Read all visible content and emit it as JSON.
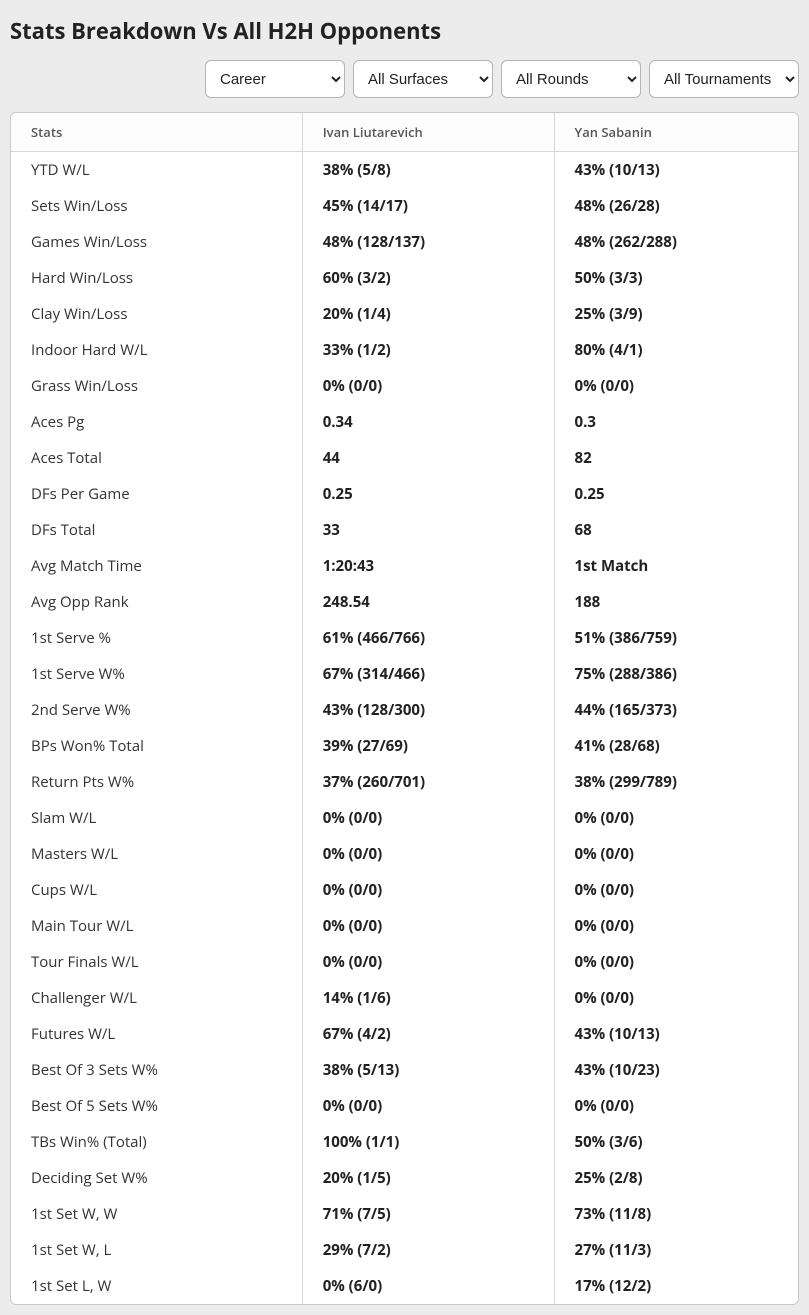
{
  "title": "Stats Breakdown Vs All H2H Opponents",
  "filters": {
    "period": {
      "selected": "Career",
      "options": [
        "Career"
      ]
    },
    "surface": {
      "selected": "All Surfaces",
      "options": [
        "All Surfaces"
      ]
    },
    "round": {
      "selected": "All Rounds",
      "options": [
        "All Rounds"
      ]
    },
    "tournament": {
      "selected": "All Tournaments",
      "options": [
        "All Tournaments"
      ]
    }
  },
  "table": {
    "columns": {
      "stats": "Stats",
      "player1": "Ivan Liutarevich",
      "player2": "Yan Sabanin"
    },
    "rows": [
      {
        "label": "YTD W/L",
        "p1": "38% (5/8)",
        "p2": "43% (10/13)"
      },
      {
        "label": "Sets Win/Loss",
        "p1": "45% (14/17)",
        "p2": "48% (26/28)"
      },
      {
        "label": "Games Win/Loss",
        "p1": "48% (128/137)",
        "p2": "48% (262/288)"
      },
      {
        "label": "Hard Win/Loss",
        "p1": "60% (3/2)",
        "p2": "50% (3/3)"
      },
      {
        "label": "Clay Win/Loss",
        "p1": "20% (1/4)",
        "p2": "25% (3/9)"
      },
      {
        "label": "Indoor Hard W/L",
        "p1": "33% (1/2)",
        "p2": "80% (4/1)"
      },
      {
        "label": "Grass Win/Loss",
        "p1": "0% (0/0)",
        "p2": "0% (0/0)"
      },
      {
        "label": "Aces Pg",
        "p1": "0.34",
        "p2": "0.3"
      },
      {
        "label": "Aces Total",
        "p1": "44",
        "p2": "82"
      },
      {
        "label": "DFs Per Game",
        "p1": "0.25",
        "p2": "0.25"
      },
      {
        "label": "DFs Total",
        "p1": "33",
        "p2": "68"
      },
      {
        "label": "Avg Match Time",
        "p1": "1:20:43",
        "p2": "1st Match"
      },
      {
        "label": "Avg Opp Rank",
        "p1": "248.54",
        "p2": "188"
      },
      {
        "label": "1st Serve %",
        "p1": "61% (466/766)",
        "p2": "51% (386/759)"
      },
      {
        "label": "1st Serve W%",
        "p1": "67% (314/466)",
        "p2": "75% (288/386)"
      },
      {
        "label": "2nd Serve W%",
        "p1": "43% (128/300)",
        "p2": "44% (165/373)"
      },
      {
        "label": "BPs Won% Total",
        "p1": "39% (27/69)",
        "p2": "41% (28/68)"
      },
      {
        "label": "Return Pts W%",
        "p1": "37% (260/701)",
        "p2": "38% (299/789)"
      },
      {
        "label": "Slam W/L",
        "p1": "0% (0/0)",
        "p2": "0% (0/0)"
      },
      {
        "label": "Masters W/L",
        "p1": "0% (0/0)",
        "p2": "0% (0/0)"
      },
      {
        "label": "Cups W/L",
        "p1": "0% (0/0)",
        "p2": "0% (0/0)"
      },
      {
        "label": "Main Tour W/L",
        "p1": "0% (0/0)",
        "p2": "0% (0/0)"
      },
      {
        "label": "Tour Finals W/L",
        "p1": "0% (0/0)",
        "p2": "0% (0/0)"
      },
      {
        "label": "Challenger W/L",
        "p1": "14% (1/6)",
        "p2": "0% (0/0)"
      },
      {
        "label": "Futures W/L",
        "p1": "67% (4/2)",
        "p2": "43% (10/13)"
      },
      {
        "label": "Best Of 3 Sets W%",
        "p1": "38% (5/13)",
        "p2": "43% (10/23)"
      },
      {
        "label": "Best Of 5 Sets W%",
        "p1": "0% (0/0)",
        "p2": "0% (0/0)"
      },
      {
        "label": "TBs Win% (Total)",
        "p1": "100% (1/1)",
        "p2": "50% (3/6)"
      },
      {
        "label": "Deciding Set W%",
        "p1": "20% (1/5)",
        "p2": "25% (2/8)"
      },
      {
        "label": "1st Set W, W",
        "p1": "71% (7/5)",
        "p2": "73% (11/8)"
      },
      {
        "label": "1st Set W, L",
        "p1": "29% (7/2)",
        "p2": "27% (11/3)"
      },
      {
        "label": "1st Set L, W",
        "p1": "0% (6/0)",
        "p2": "17% (12/2)"
      }
    ]
  }
}
